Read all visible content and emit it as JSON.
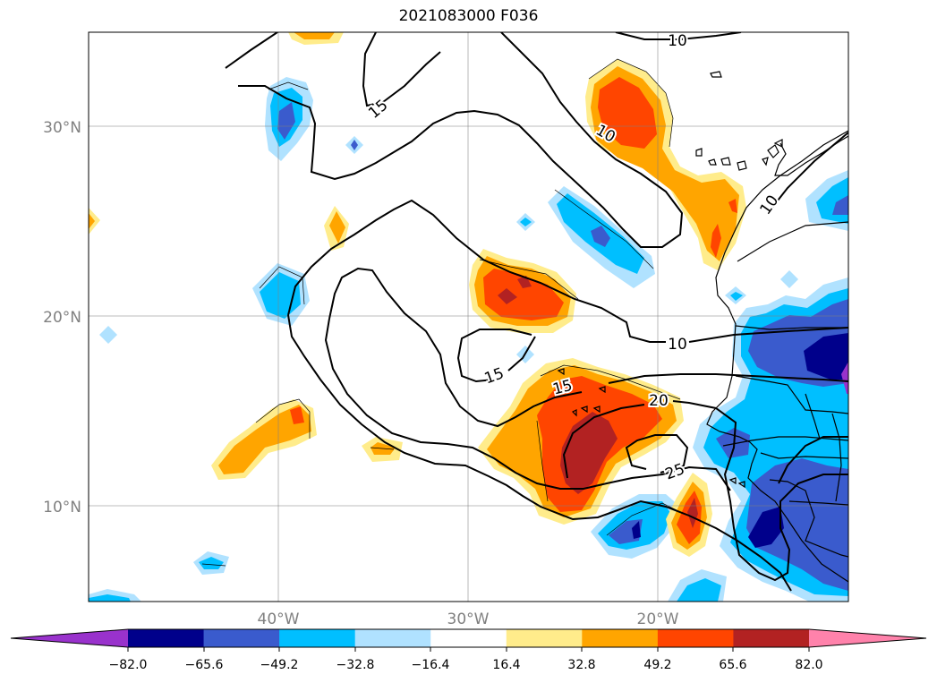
{
  "title": "2021083000 F036",
  "map": {
    "lat_labels": [
      "30°N",
      "20°N",
      "10°N"
    ],
    "lon_labels": [
      "40°W",
      "30°W",
      "20°W"
    ],
    "contour_labels": [
      "10",
      "15",
      "10",
      "10",
      "15",
      "10",
      "15",
      "20",
      "25"
    ]
  },
  "colorbar": {
    "ticks": [
      "−82.0",
      "−65.6",
      "−49.2",
      "−32.8",
      "−16.4",
      "16.4",
      "32.8",
      "49.2",
      "65.6",
      "82.0"
    ],
    "colors": [
      "#9932cc",
      "#00008b",
      "#3a5bcd",
      "#00bfff",
      "#b0e2ff",
      "#ffffff",
      "#ffec8b",
      "#ffa500",
      "#ff4500",
      "#b22222",
      "#ff82ab"
    ]
  }
}
